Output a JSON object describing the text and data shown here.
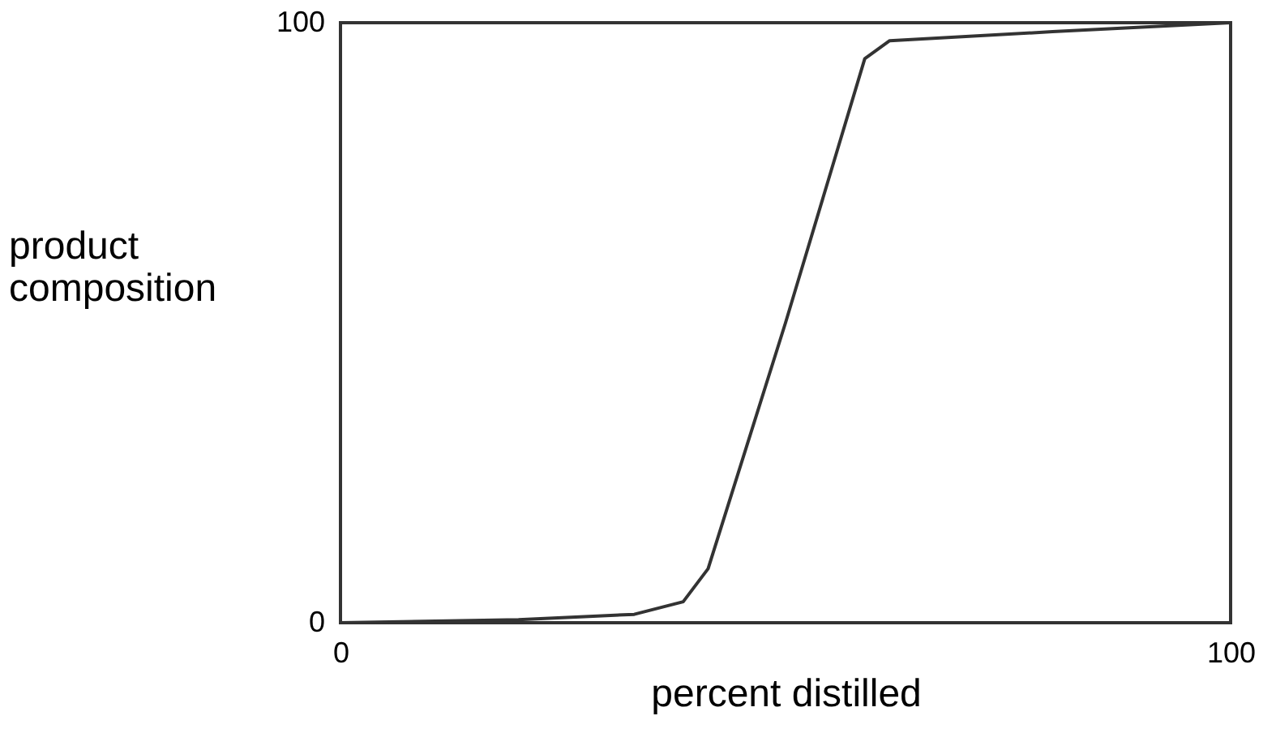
{
  "chart_data": {
    "type": "line",
    "xlabel": "percent distilled",
    "ylabel": "product composition",
    "x": [
      0,
      20,
      33,
      38.5,
      41.3,
      50,
      58.9,
      61.7,
      80,
      100
    ],
    "values": [
      0,
      0.5,
      1.4,
      3.5,
      9,
      50,
      94,
      97,
      98.5,
      100
    ],
    "color": "#333333",
    "xlim": [
      0,
      100
    ],
    "ylim": [
      0,
      100
    ],
    "xticks": [
      0,
      100
    ],
    "yticks": [
      0,
      100
    ],
    "grid": false,
    "marker": "none",
    "line_style": "solid"
  }
}
